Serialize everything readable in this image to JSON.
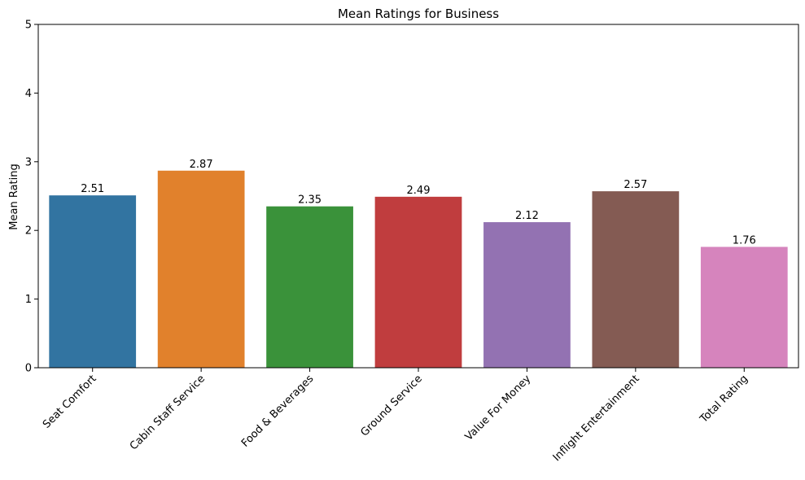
{
  "chart_data": {
    "type": "bar",
    "title": "Mean Ratings for Business",
    "xlabel": "",
    "ylabel": "Mean Rating",
    "ylim": [
      0,
      5
    ],
    "yticks": [
      0,
      1,
      2,
      3,
      4,
      5
    ],
    "grid": false,
    "categories": [
      "Seat Comfort",
      "Cabin Staff Service",
      "Food & Beverages",
      "Ground Service",
      "Value For Money",
      "Inflight Entertainment",
      "Total Rating"
    ],
    "values": [
      2.51,
      2.87,
      2.35,
      2.49,
      2.12,
      2.57,
      1.76
    ],
    "data_labels": [
      "2.51",
      "2.87",
      "2.35",
      "2.49",
      "2.12",
      "2.57",
      "1.76"
    ],
    "colors": [
      "#3274a1",
      "#e1812c",
      "#3a923a",
      "#c03d3e",
      "#9372b2",
      "#845b53",
      "#d684bd"
    ],
    "x_tick_rotation": -45
  }
}
